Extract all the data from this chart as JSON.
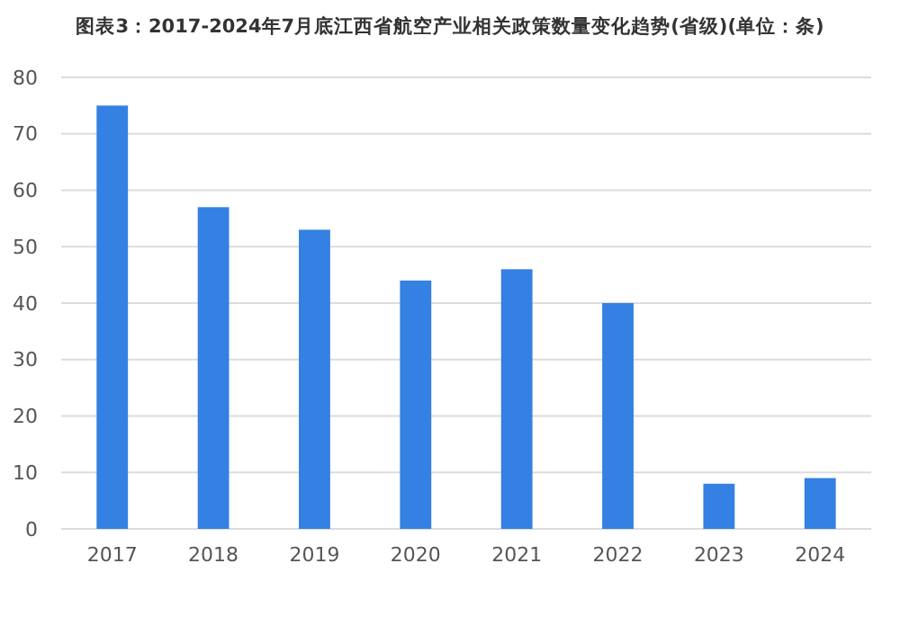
{
  "chart_data": {
    "type": "bar",
    "title": "图表3：2017-2024年7月底江西省航空产业相关政策数量变化趋势(省级)(单位：条)",
    "categories": [
      "2017",
      "2018",
      "2019",
      "2020",
      "2021",
      "2022",
      "2023",
      "2024"
    ],
    "values": [
      75,
      57,
      53,
      44,
      46,
      40,
      8,
      9
    ],
    "color": "#3480e3",
    "ylim": [
      0,
      80
    ],
    "yticks": [
      0,
      10,
      20,
      30,
      40,
      50,
      60,
      70,
      80
    ],
    "grid": "y"
  }
}
